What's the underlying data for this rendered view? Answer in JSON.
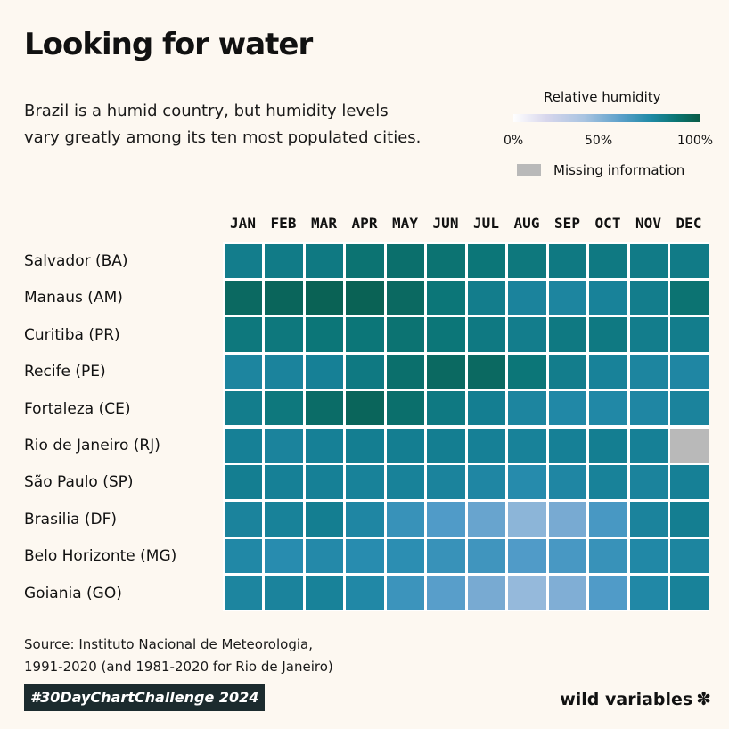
{
  "title": "Looking for water",
  "subtitle": "Brazil is a humid country, but humidity levels vary greatly among its ten most populated cities.",
  "legend": {
    "title": "Relative humidity",
    "ticks": [
      "0%",
      "50%",
      "100%"
    ],
    "missing_label": "Missing information",
    "missing_color": "#b9b9b9"
  },
  "source_line1": "Source: Instituto Nacional de Meteorologia,",
  "source_line2": "1991-2020 (and 1981-2020 for Rio de Janeiro)",
  "badge": "#30DayChartChallenge 2024",
  "brand": "wild variables",
  "brand_icon": "✽",
  "chart_data": {
    "type": "heatmap",
    "title": "Looking for water",
    "value_label": "Relative humidity",
    "value_range": [
      0,
      100
    ],
    "x": [
      "JAN",
      "FEB",
      "MAR",
      "APR",
      "MAY",
      "JUN",
      "JUL",
      "AUG",
      "SEP",
      "OCT",
      "NOV",
      "DEC"
    ],
    "y": [
      "Salvador (BA)",
      "Manaus (AM)",
      "Curitiba (PR)",
      "Recife (PE)",
      "Fortaleza (CE)",
      "Rio de Janeiro (RJ)",
      "São Paulo (SP)",
      "Brasilia (DF)",
      "Belo Horizonte (MG)",
      "Goiania (GO)"
    ],
    "values": [
      [
        80,
        81,
        82,
        85,
        86,
        85,
        84,
        83,
        82,
        82,
        81,
        81
      ],
      [
        88,
        89,
        90,
        90,
        88,
        84,
        80,
        76,
        75,
        77,
        80,
        85
      ],
      [
        83,
        83,
        84,
        84,
        85,
        84,
        82,
        80,
        82,
        82,
        80,
        80
      ],
      [
        75,
        76,
        78,
        82,
        86,
        88,
        88,
        84,
        80,
        77,
        75,
        74
      ],
      [
        80,
        83,
        87,
        89,
        86,
        82,
        79,
        75,
        73,
        73,
        74,
        76
      ],
      [
        78,
        76,
        78,
        79,
        79,
        79,
        78,
        77,
        78,
        79,
        78,
        null
      ],
      [
        79,
        78,
        78,
        77,
        77,
        76,
        74,
        71,
        74,
        77,
        76,
        78
      ],
      [
        76,
        77,
        79,
        74,
        66,
        60,
        54,
        45,
        50,
        62,
        76,
        79
      ],
      [
        73,
        70,
        72,
        70,
        69,
        66,
        64,
        60,
        62,
        66,
        73,
        75
      ],
      [
        75,
        76,
        77,
        73,
        65,
        58,
        50,
        43,
        48,
        60,
        73,
        77
      ]
    ]
  }
}
